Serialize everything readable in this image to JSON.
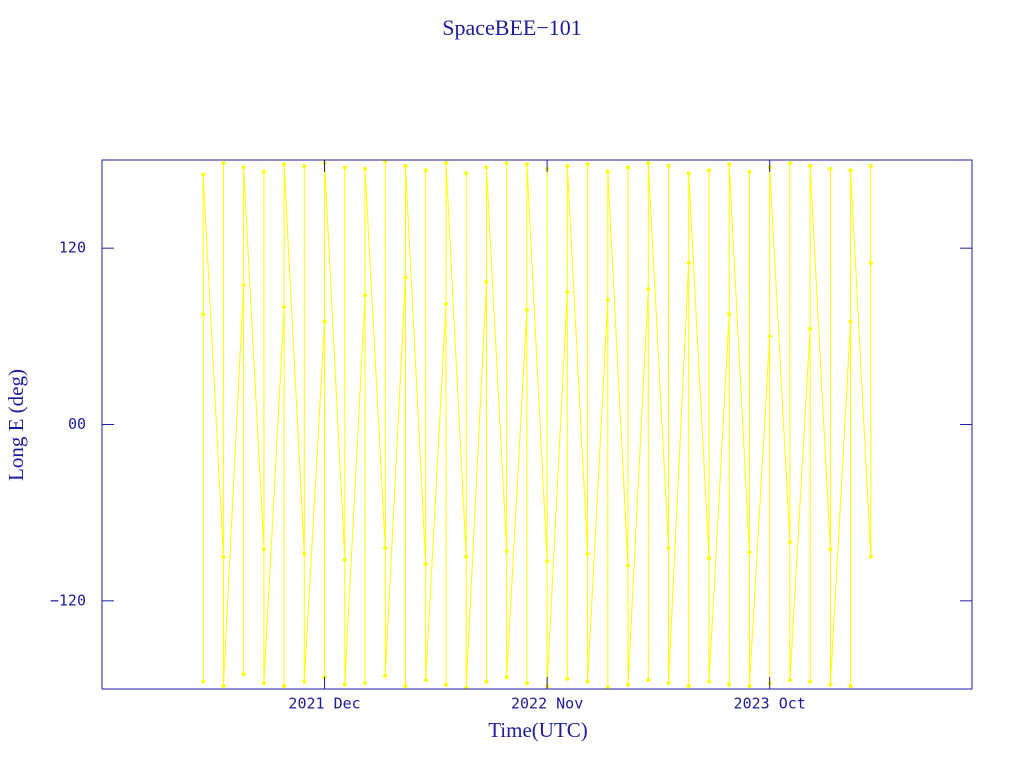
{
  "chart_data": {
    "type": "line",
    "title": "SpaceBEE−101",
    "xlabel": "Time(UTC)",
    "ylabel": "Long E (deg)",
    "x": [
      "2021-06",
      "2021-06",
      "2021-06",
      "2021-07",
      "2021-07",
      "2021-07",
      "2021-08",
      "2021-08",
      "2021-08",
      "2021-09",
      "2021-09",
      "2021-09",
      "2021-10",
      "2021-10",
      "2021-10",
      "2021-11",
      "2021-11",
      "2021-11",
      "2021-12",
      "2021-12",
      "2021-12",
      "2022-01",
      "2022-01",
      "2022-01",
      "2022-02",
      "2022-02",
      "2022-02",
      "2022-03",
      "2022-03",
      "2022-03",
      "2022-04",
      "2022-04",
      "2022-04",
      "2022-05",
      "2022-05",
      "2022-05",
      "2022-06",
      "2022-06",
      "2022-06",
      "2022-07",
      "2022-07",
      "2022-07",
      "2022-08",
      "2022-08",
      "2022-08",
      "2022-09",
      "2022-09",
      "2022-09",
      "2022-10",
      "2022-10",
      "2022-10",
      "2022-11",
      "2022-11",
      "2022-11",
      "2022-12",
      "2022-12",
      "2022-12",
      "2023-01",
      "2023-01",
      "2023-01",
      "2023-02",
      "2023-02",
      "2023-02",
      "2023-03",
      "2023-03",
      "2023-03",
      "2023-04",
      "2023-04",
      "2023-04",
      "2023-05",
      "2023-05",
      "2023-05",
      "2023-06",
      "2023-06",
      "2023-06",
      "2023-07",
      "2023-07",
      "2023-07",
      "2023-08",
      "2023-08",
      "2023-08",
      "2023-09",
      "2023-09",
      "2023-09",
      "2023-10",
      "2023-10",
      "2023-10",
      "2023-11",
      "2023-11",
      "2023-11",
      "2023-12",
      "2023-12",
      "2023-12",
      "2024-01",
      "2024-01",
      "2024-01",
      "2024-02",
      "2024-02",
      "2024-02",
      "2024-03",
      "2024-03",
      "2024-03"
    ],
    "series": [
      {
        "name": "Long E",
        "color": "#ffff00",
        "values": [
          75,
          -175,
          170,
          -90,
          178,
          -178,
          95,
          -170,
          175,
          -85,
          172,
          -176,
          80,
          -178,
          177,
          -88,
          176,
          -175,
          70,
          -172,
          178,
          -92,
          175,
          -177,
          88,
          -176,
          174,
          -84,
          179,
          -171,
          100,
          -178,
          176,
          -95,
          173,
          -174,
          82,
          -177,
          178,
          -90,
          171,
          -179,
          97,
          -175,
          175,
          -86,
          178,
          -172,
          78,
          -176,
          177,
          -93,
          174,
          -178,
          90,
          -173,
          176,
          -88,
          177,
          -175,
          85,
          -179,
          172,
          -96,
          175,
          -177,
          92,
          -174,
          178,
          -84,
          176,
          -176,
          110,
          -178,
          171,
          -91,
          173,
          -175,
          75,
          -177,
          177,
          -87,
          172,
          -178,
          60,
          -176,
          175,
          -80,
          178,
          -174,
          65,
          -175,
          176,
          -85,
          174,
          -177,
          70,
          -178,
          173,
          -90,
          176,
          110
        ]
      }
    ],
    "xlim": [
      "2021-01",
      "2024-08"
    ],
    "xticks": [
      {
        "value": "2021-12",
        "label": "2021 Dec"
      },
      {
        "value": "2022-11",
        "label": "2022 Nov"
      },
      {
        "value": "2023-10",
        "label": "2023 Oct"
      }
    ],
    "ylim": [
      -180,
      180
    ],
    "yticks": [
      {
        "value": -120,
        "label": "−120"
      },
      {
        "value": 0,
        "label": "00"
      },
      120
    ]
  }
}
